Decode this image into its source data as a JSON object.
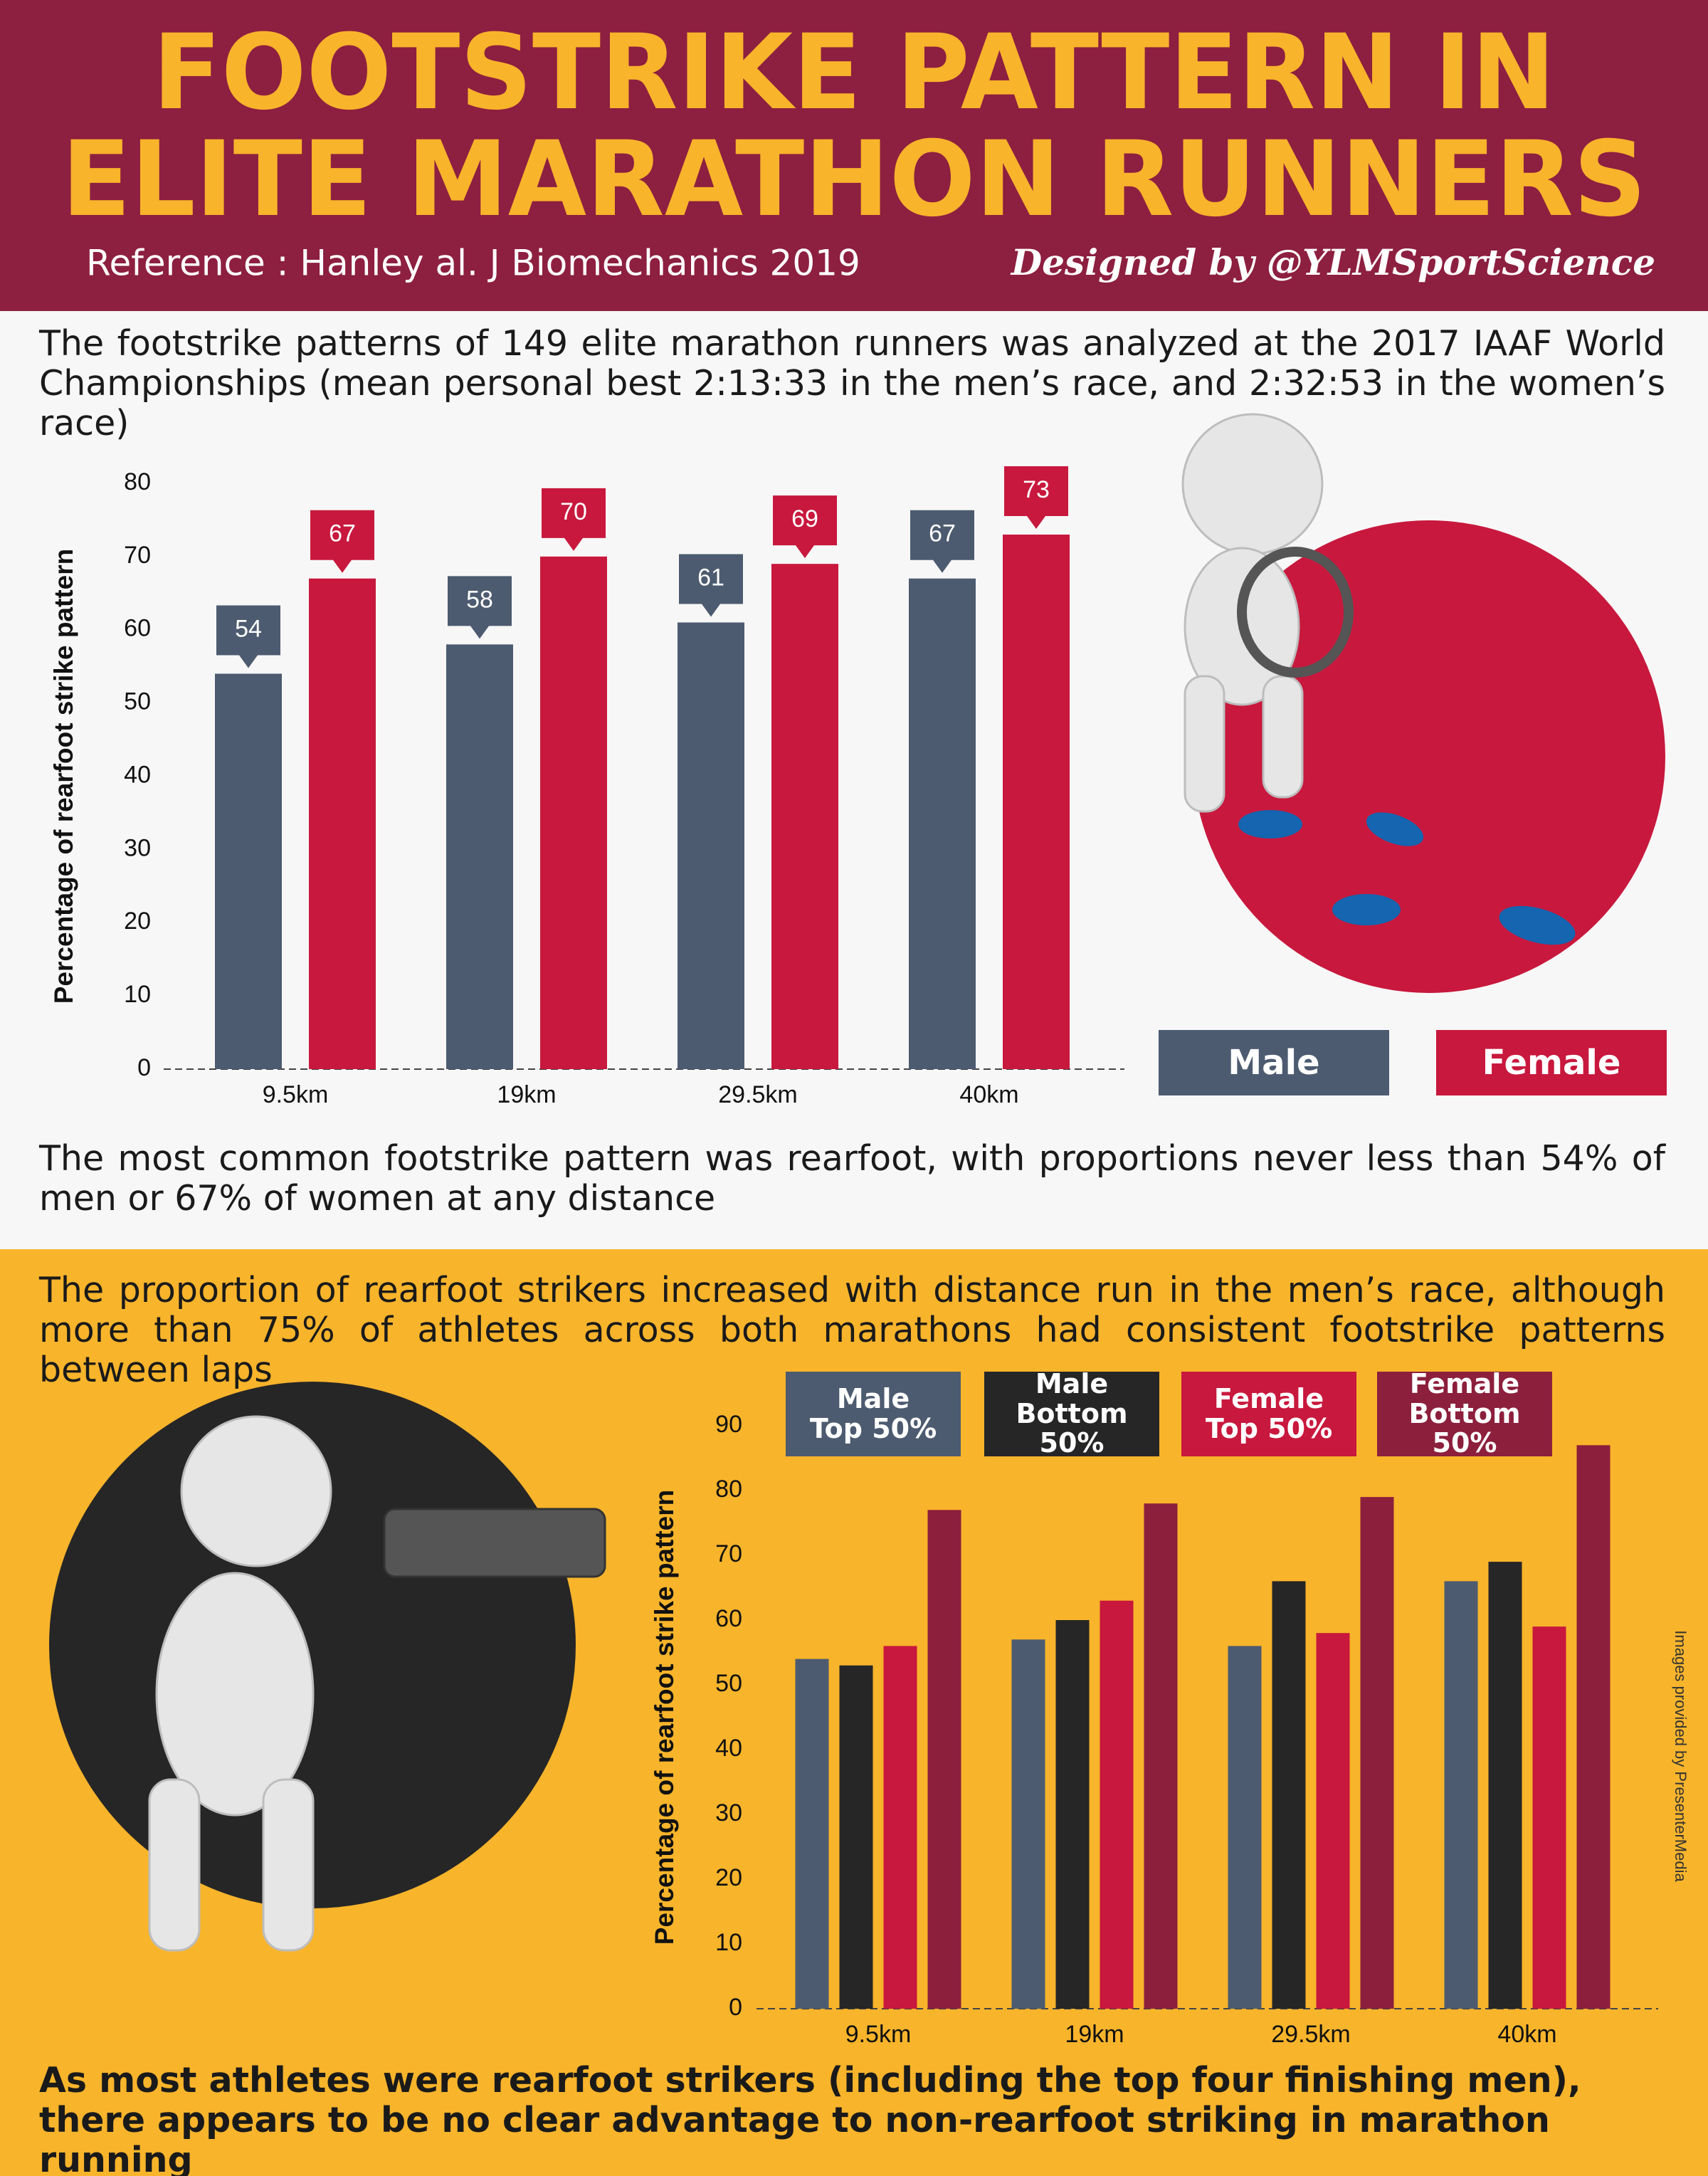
{
  "header": {
    "title": [
      "FOOTSTRIKE PATTERN IN",
      "ELITE MARATHON RUNNERS"
    ],
    "reference": "Reference : Hanley al. J Biomechanics 2019",
    "designer": "Designed by @YLMSportScience"
  },
  "intro": "The footstrike patterns of 149 elite marathon runners was analyzed at the 2017 IAAF World Championships (mean personal best 2:13:33 in the men’s race, and 2:32:53 in the women’s race)",
  "finding_1": "The most common footstrike pattern was rearfoot, with proportions never less than 54% of men or 67% of women at any distance",
  "finding_2": "The proportion of rearfoot strikers increased with distance run in the men’s race, although more than 75% of athletes across both marathons had consistent footstrike patterns between laps",
  "conclusion": "As most athletes were rearfoot strikers (including the top four finishing men), there appears to be no clear advantage to non-rearfoot striking in marathon running",
  "credit": "Images provided by PresenterMedia",
  "chart_data": [
    {
      "type": "bar",
      "y_label": "Percentage of rearfoot strike pattern",
      "categories": [
        "9.5km",
        "19km",
        "29.5km",
        "40km"
      ],
      "series": [
        {
          "name": "Male",
          "color": "#4d5b70",
          "values": [
            54,
            58,
            61,
            67
          ]
        },
        {
          "name": "Female",
          "color": "#c8183d",
          "values": [
            67,
            70,
            69,
            73
          ]
        }
      ],
      "ylim": [
        0,
        80
      ],
      "yticks": [
        0,
        10,
        20,
        30,
        40,
        50,
        60,
        70,
        80
      ],
      "grid": false,
      "data_labels": true
    },
    {
      "type": "bar",
      "y_label": "Percentage of rearfoot strike pattern",
      "categories": [
        "9.5km",
        "19km",
        "29.5km",
        "40km"
      ],
      "series": [
        {
          "name": "Male\nTop 50%",
          "color": "#4d5b70",
          "values": [
            54,
            57,
            56,
            66
          ]
        },
        {
          "name": "Male\nBottom 50%",
          "color": "#262626",
          "values": [
            53,
            60,
            66,
            69
          ]
        },
        {
          "name": "Female\nTop 50%",
          "color": "#c8183d",
          "values": [
            56,
            63,
            58,
            59
          ]
        },
        {
          "name": "Female\nBottom 50%",
          "color": "#8c1f3c",
          "values": [
            77,
            78,
            79,
            87
          ]
        }
      ],
      "ylim": [
        0,
        90
      ],
      "yticks": [
        0,
        10,
        20,
        30,
        40,
        50,
        60,
        70,
        80,
        90
      ],
      "grid": false,
      "data_labels": false
    }
  ]
}
